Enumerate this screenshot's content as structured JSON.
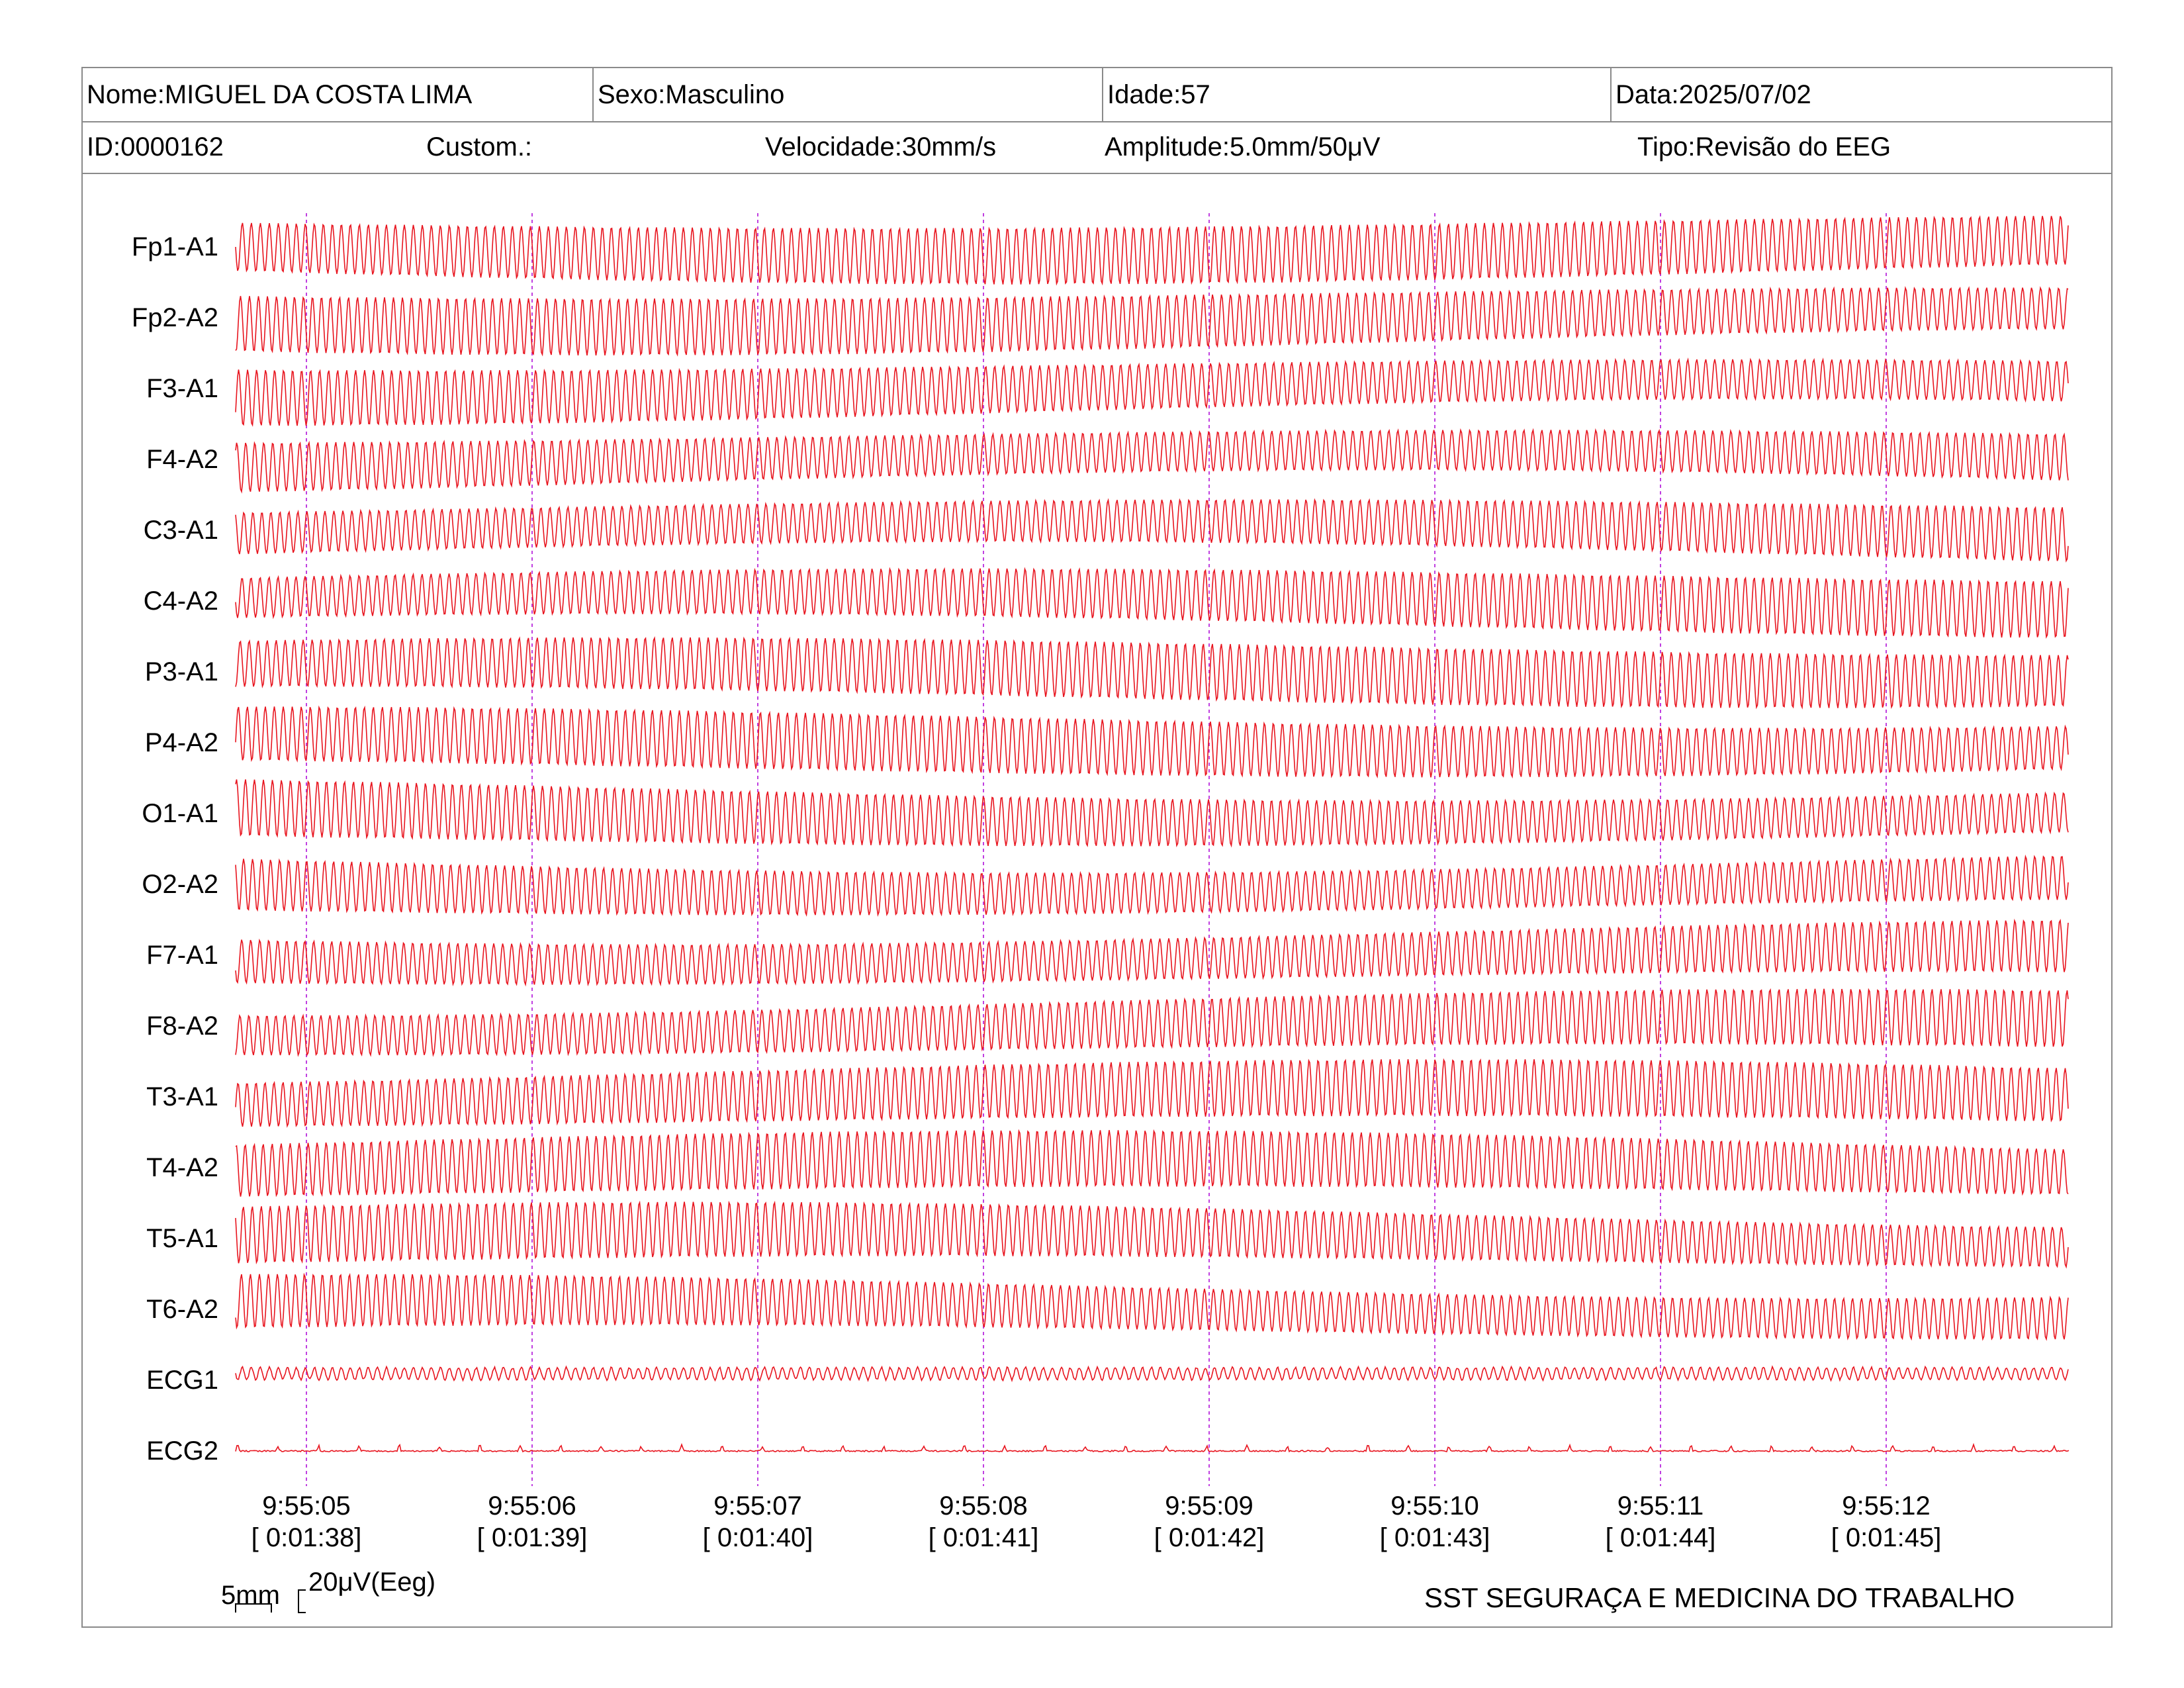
{
  "header": {
    "nome": "Nome:MIGUEL DA COSTA LIMA",
    "sexo": "Sexo:Masculino",
    "idade": "Idade:57",
    "data": "Data:2025/07/02",
    "id": "ID:0000162",
    "custom": "Custom.:",
    "velocidade": "Velocidade:30mm/s",
    "amplitude": "Amplitude:5.0mm/50μV",
    "tipo": "Tipo:Revisão do EEG"
  },
  "channels": [
    {
      "label": "Fp1-A1",
      "type": "eeg"
    },
    {
      "label": "Fp2-A2",
      "type": "eeg"
    },
    {
      "label": "F3-A1",
      "type": "eeg"
    },
    {
      "label": "F4-A2",
      "type": "eeg"
    },
    {
      "label": "C3-A1",
      "type": "eeg"
    },
    {
      "label": "C4-A2",
      "type": "eeg"
    },
    {
      "label": "P3-A1",
      "type": "eeg"
    },
    {
      "label": "P4-A2",
      "type": "eeg"
    },
    {
      "label": "O1-A1",
      "type": "eeg"
    },
    {
      "label": "O2-A2",
      "type": "eeg"
    },
    {
      "label": "F7-A1",
      "type": "eeg"
    },
    {
      "label": "F8-A2",
      "type": "eeg"
    },
    {
      "label": "T3-A1",
      "type": "eeg"
    },
    {
      "label": "T4-A2",
      "type": "eeg"
    },
    {
      "label": "T5-A1",
      "type": "eeg"
    },
    {
      "label": "T6-A2",
      "type": "eeg"
    },
    {
      "label": "ECG1",
      "type": "ecg1"
    },
    {
      "label": "ECG2",
      "type": "ecg2"
    }
  ],
  "time_markers": [
    {
      "clock": "9:55:05",
      "elapsed": "[ 0:01:38]"
    },
    {
      "clock": "9:55:06",
      "elapsed": "[ 0:01:39]"
    },
    {
      "clock": "9:55:07",
      "elapsed": "[ 0:01:40]"
    },
    {
      "clock": "9:55:08",
      "elapsed": "[ 0:01:41]"
    },
    {
      "clock": "9:55:09",
      "elapsed": "[ 0:01:42]"
    },
    {
      "clock": "9:55:10",
      "elapsed": "[ 0:01:43]"
    },
    {
      "clock": "9:55:11",
      "elapsed": "[ 0:01:44]"
    },
    {
      "clock": "9:55:12",
      "elapsed": "[ 0:01:45]"
    }
  ],
  "scale": {
    "horizontal": "5mm",
    "vertical": "20μV(Eeg)"
  },
  "footer": "SST SEGURAÇA E MEDICINA DO TRABALHO",
  "colors": {
    "trace": "#e8141e",
    "marker": "#c040e0",
    "border": "#8a8a8a"
  }
}
